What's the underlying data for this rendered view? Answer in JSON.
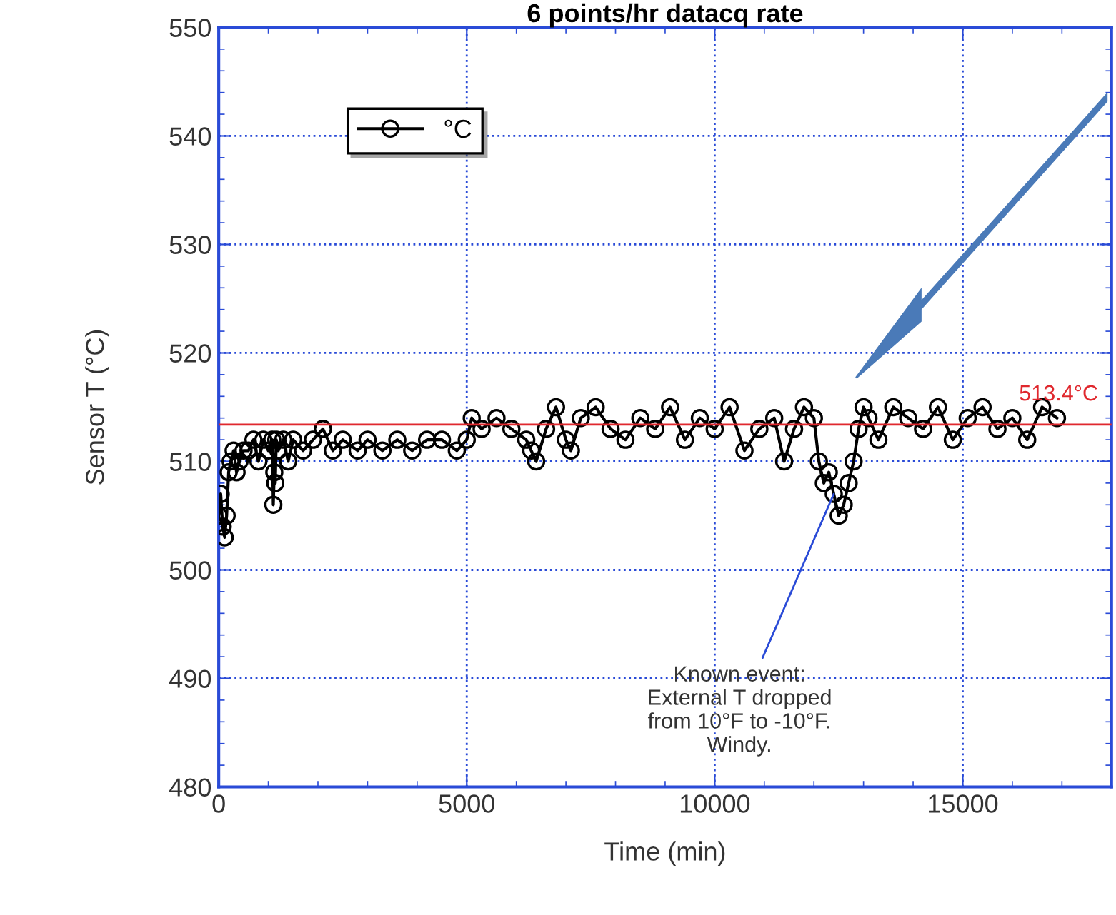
{
  "chart_data": {
    "type": "line",
    "title": "6 points/hr datacq rate",
    "xlabel": "Time (min)",
    "ylabel": "Sensor T (°C)",
    "xlim": [
      0,
      18000
    ],
    "xticks": [
      0,
      5000,
      10000,
      15000
    ],
    "ylim": [
      480,
      550
    ],
    "yticks": [
      480,
      490,
      500,
      510,
      520,
      530,
      540,
      550
    ],
    "grid": true,
    "legend": "top left",
    "marker": "circle",
    "line_style": "solid",
    "series": [
      {
        "name": "°C",
        "color": "#000000",
        "x": [
          0,
          40,
          80,
          120,
          160,
          200,
          240,
          300,
          360,
          420,
          500,
          600,
          700,
          800,
          900,
          1000,
          1080,
          1100,
          1120,
          1140,
          1160,
          1200,
          1300,
          1400,
          1500,
          1700,
          1900,
          2100,
          2300,
          2500,
          2800,
          3000,
          3300,
          3600,
          3900,
          4200,
          4500,
          4800,
          5000,
          5100,
          5300,
          5600,
          5900,
          6200,
          6300,
          6400,
          6600,
          6800,
          7000,
          7100,
          7300,
          7600,
          7900,
          8200,
          8500,
          8800,
          9100,
          9400,
          9700,
          10000,
          10300,
          10600,
          10900,
          11200,
          11400,
          11600,
          11800,
          12000,
          12100,
          12200,
          12300,
          12400,
          12500,
          12600,
          12700,
          12800,
          12900,
          13000,
          13100,
          13300,
          13600,
          13900,
          14200,
          14500,
          14800,
          15100,
          15400,
          15700,
          16000,
          16300,
          16600,
          16900
        ],
        "values": [
          505,
          507,
          504,
          503,
          505,
          509,
          510,
          511,
          509,
          510,
          511,
          511,
          512,
          510,
          512,
          511,
          512,
          506,
          509,
          508,
          512,
          511,
          512,
          510,
          512,
          511,
          512,
          513,
          511,
          512,
          511,
          512,
          511,
          512,
          511,
          512,
          512,
          511,
          512,
          514,
          513,
          514,
          513,
          512,
          511,
          510,
          513,
          515,
          512,
          511,
          514,
          515,
          513,
          512,
          514,
          513,
          515,
          512,
          514,
          513,
          515,
          511,
          513,
          514,
          510,
          513,
          515,
          514,
          510,
          508,
          509,
          507,
          505,
          506,
          508,
          510,
          513,
          515,
          514,
          512,
          515,
          514,
          513,
          515,
          512,
          514,
          515,
          513,
          514,
          512,
          515,
          514
        ]
      }
    ],
    "ref_lines": [
      {
        "axis": "y",
        "value": 513.4,
        "label": "513.4°C",
        "color": "#e0282e"
      }
    ],
    "annotations": [
      {
        "text": "Known event:\nExternal T dropped\nfrom 10°F to -10°F.\nWindy.",
        "x": 12400,
        "y": 507
      }
    ]
  }
}
